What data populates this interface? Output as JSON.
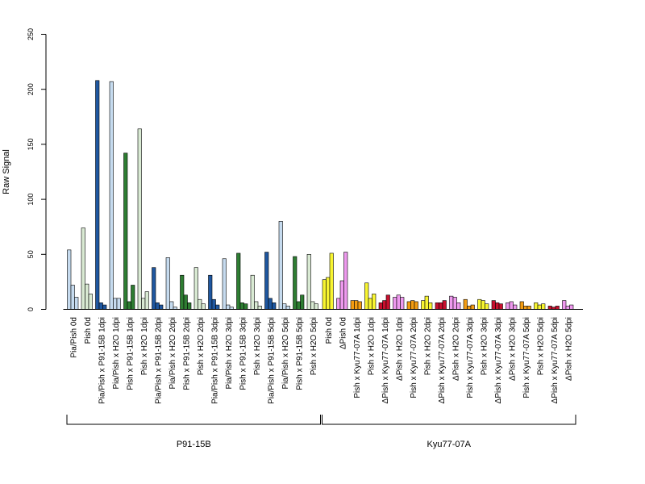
{
  "chart_data": {
    "type": "bar",
    "ylabel": "Raw Signal",
    "ylim": [
      0,
      250
    ],
    "yticks": [
      0,
      50,
      100,
      150,
      200,
      250
    ],
    "categories": [
      "Pia/Pish 0d",
      "Pish 0d",
      "Pia/Pish x P91-15B 1dpi",
      "Pia/Pish x H2O 1dpi",
      "Pish x P91-15B 1dpi",
      "Pish x H2O 1dpi",
      "Pia/Pish x P91-15B 2dpi",
      "Pia/Pish x H2O 2dpi",
      "Pish x P91-15B 2dpi",
      "Pish x H2O 2dpi",
      "Pia/Pish x P91-15B 3dpi",
      "Pia/Pish x H2O 3dpi",
      "Pish x P91-15B 3dpi",
      "Pish x H2O 3dpi",
      "Pia/Pish x P91-15B 5dpi",
      "Pia/Pish x H2O 5dpi",
      "Pish x P91-15B 5dpi",
      "Pish x H2O 5dpi",
      "Pish 0d",
      "ΔPish 0d",
      "Pish x Kyu77-07A 1dpi",
      "Pish x H2O 1dpi",
      "ΔPish x Kyu77-07A 1dpi",
      "ΔPish x H2O 1dpi",
      "Pish x Kyu77-07A 2dpi",
      "Pish x H2O 2dpi",
      "ΔPish x Kyu77-07A 2dpi",
      "ΔPish x H2O 2dpi",
      "Pish x Kyu77-07A 3dpi",
      "Pish x H2O 3dpi",
      "ΔPish x Kyu77-07A 3dpi",
      "ΔPish x H2O 3dpi",
      "Pish x Kyu77-07A 5dpi",
      "Pish x H2O 5dpi",
      "ΔPish x Kyu77-07A 5dpi",
      "ΔPish x H2O 5dpi"
    ],
    "replicate_values": [
      [
        54,
        22,
        11
      ],
      [
        74,
        23,
        14
      ],
      [
        208,
        6,
        4
      ],
      [
        207,
        10,
        10
      ],
      [
        142,
        7,
        22
      ],
      [
        164,
        10,
        16
      ],
      [
        38,
        6,
        4
      ],
      [
        47,
        7,
        2
      ],
      [
        31,
        13,
        6
      ],
      [
        38,
        9,
        5
      ],
      [
        31,
        9,
        4
      ],
      [
        46,
        4,
        2
      ],
      [
        51,
        6,
        5
      ],
      [
        31,
        7,
        3
      ],
      [
        52,
        10,
        6
      ],
      [
        80,
        5,
        3
      ],
      [
        48,
        7,
        13
      ],
      [
        50,
        7,
        5
      ],
      [
        27,
        29,
        51
      ],
      [
        10,
        26,
        52
      ],
      [
        8,
        8,
        7
      ],
      [
        24,
        10,
        14
      ],
      [
        6,
        8,
        13
      ],
      [
        11,
        13,
        11
      ],
      [
        7,
        8,
        7
      ],
      [
        8,
        12,
        6
      ],
      [
        6,
        6,
        8
      ],
      [
        12,
        11,
        6
      ],
      [
        9,
        3,
        4
      ],
      [
        9,
        8,
        5
      ],
      [
        8,
        6,
        5
      ],
      [
        6,
        7,
        4
      ],
      [
        7,
        3,
        3
      ],
      [
        6,
        4,
        5
      ],
      [
        3,
        2,
        3
      ],
      [
        8,
        3,
        4
      ]
    ],
    "bar_colors": [
      "#c6dbef",
      "#d9ead3",
      "#1f57a0",
      "#c6dbef",
      "#2e7d32",
      "#d9ead3",
      "#1f57a0",
      "#c6dbef",
      "#2e7d32",
      "#d9ead3",
      "#1f57a0",
      "#c6dbef",
      "#2e7d32",
      "#d9ead3",
      "#1f57a0",
      "#c6dbef",
      "#2e7d32",
      "#d9ead3",
      "#f8f531",
      "#ee99ee",
      "#f39c12",
      "#f8f531",
      "#c8102e",
      "#ee99ee",
      "#f39c12",
      "#f8f531",
      "#c8102e",
      "#ee99ee",
      "#f39c12",
      "#f8f531",
      "#c8102e",
      "#ee99ee",
      "#f39c12",
      "#f8f531",
      "#c8102e",
      "#ee99ee"
    ],
    "groups": [
      {
        "label": "P91-15B",
        "start": 0,
        "end": 17
      },
      {
        "label": "Kyu77-07A",
        "start": 18,
        "end": 35
      }
    ],
    "grid": false,
    "legend": "none"
  }
}
